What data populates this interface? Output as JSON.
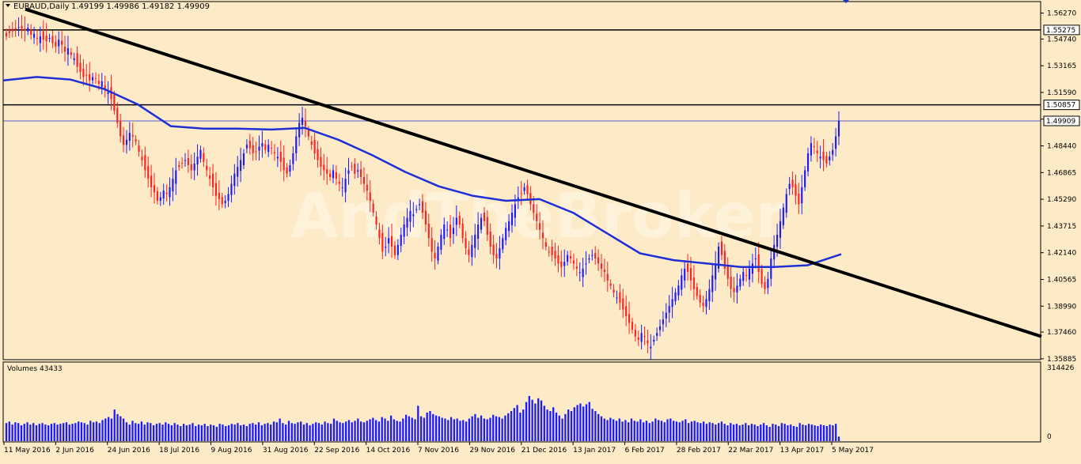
{
  "header": {
    "symbol_label": "EURAUD,Daily",
    "ohlc_text": "1.49199 1.49986 1.49182 1.49909"
  },
  "watermark": "AndTheBroker",
  "volume_panel": {
    "label": "Volumes 43433",
    "axis_labels": [
      "314426",
      "0"
    ]
  },
  "colors": {
    "background": "#fdebc8",
    "bull_candle": "#1a1aff",
    "bear_candle": "#ff2020",
    "moving_average": "#1f2fd6",
    "trendline": "#000000",
    "volume_bars": "#1a1aff",
    "axis_text": "#000000"
  },
  "chart_data": {
    "type": "candlestick",
    "symbol": "EURAUD",
    "timeframe": "Daily",
    "ylim": [
      1.3588,
      1.569
    ],
    "price_ticks": [
      "1.56270",
      "1.54740",
      "1.53165",
      "1.51590",
      "1.50015",
      "1.48440",
      "1.46865",
      "1.45290",
      "1.43715",
      "1.42140",
      "1.40565",
      "1.38990",
      "1.37460",
      "1.35885"
    ],
    "price_tick_values": [
      1.5627,
      1.5474,
      1.53165,
      1.5159,
      1.50015,
      1.4844,
      1.46865,
      1.4529,
      1.43715,
      1.4214,
      1.40565,
      1.3899,
      1.3746,
      1.35885
    ],
    "date_labels": [
      "11 May 2016",
      "2 Jun 2016",
      "24 Jun 2016",
      "18 Jul 2016",
      "9 Aug 2016",
      "31 Aug 2016",
      "22 Sep 2016",
      "14 Oct 2016",
      "7 Nov 2016",
      "29 Nov 2016",
      "21 Dec 2016",
      "13 Jan 2017",
      "6 Feb 2017",
      "28 Feb 2017",
      "22 Mar 2017",
      "13 Apr 2017",
      "5 May 2017"
    ],
    "horizontal_levels": [
      {
        "value": 1.55275,
        "label": "1.55275"
      },
      {
        "value": 1.50857,
        "label": "1.50857"
      }
    ],
    "current_price": {
      "value": 1.49909,
      "label": "1.49909"
    },
    "trendline": {
      "start_value": 1.565,
      "end_value": 1.372
    },
    "moving_average": [
      1.523,
      1.525,
      1.5235,
      1.518,
      1.509,
      1.496,
      1.4945,
      1.4945,
      1.494,
      1.495,
      1.488,
      1.479,
      1.469,
      1.4605,
      1.455,
      1.452,
      1.453,
      1.445,
      1.433,
      1.421,
      1.417,
      1.415,
      1.413,
      1.413,
      1.414,
      1.4205
    ],
    "candles": [
      1.549,
      1.551,
      1.552,
      1.553,
      1.5545,
      1.5535,
      1.5525,
      1.554,
      1.55,
      1.5505,
      1.548,
      1.549,
      1.547,
      1.546,
      1.548,
      1.545,
      1.543,
      1.547,
      1.544,
      1.54,
      1.542,
      1.538,
      1.536,
      1.531,
      1.528,
      1.525,
      1.526,
      1.523,
      1.525,
      1.524,
      1.521,
      1.5225,
      1.518,
      1.516,
      1.512,
      1.505,
      1.498,
      1.49,
      1.485,
      1.488,
      1.492,
      1.49,
      1.487,
      1.481,
      1.476,
      1.47,
      1.465,
      1.46,
      1.457,
      1.452,
      1.454,
      1.458,
      1.456,
      1.46,
      1.465,
      1.47,
      1.472,
      1.474,
      1.476,
      1.473,
      1.47,
      1.474,
      1.478,
      1.482,
      1.475,
      1.47,
      1.465,
      1.46,
      1.455,
      1.453,
      1.45,
      1.452,
      1.456,
      1.462,
      1.468,
      1.472,
      1.476,
      1.48,
      1.485,
      1.483,
      1.48,
      1.481,
      1.484,
      1.486,
      1.482,
      1.485,
      1.483,
      1.48,
      1.478,
      1.475,
      1.47,
      1.468,
      1.473,
      1.48,
      1.49,
      1.498,
      1.501,
      1.496,
      1.49,
      1.485,
      1.48,
      1.476,
      1.472,
      1.47,
      1.468,
      1.466,
      1.47,
      1.465,
      1.462,
      1.46,
      1.465,
      1.47,
      1.472,
      1.468,
      1.47,
      1.466,
      1.462,
      1.458,
      1.452,
      1.445,
      1.438,
      1.43,
      1.422,
      1.425,
      1.43,
      1.425,
      1.42,
      1.426,
      1.432,
      1.438,
      1.442,
      1.446,
      1.444,
      1.447,
      1.45,
      1.445,
      1.438,
      1.43,
      1.422,
      1.418,
      1.425,
      1.432,
      1.438,
      1.435,
      1.43,
      1.436,
      1.442,
      1.438,
      1.43,
      1.424,
      1.42,
      1.426,
      1.432,
      1.438,
      1.442,
      1.44,
      1.432,
      1.425,
      1.42,
      1.418,
      1.424,
      1.43,
      1.436,
      1.44,
      1.445,
      1.45,
      1.454,
      1.456,
      1.46,
      1.456,
      1.45,
      1.445,
      1.44,
      1.435,
      1.43,
      1.425,
      1.422,
      1.42,
      1.418,
      1.415,
      1.413,
      1.416,
      1.42,
      1.418,
      1.415,
      1.412,
      1.41,
      1.412,
      1.415,
      1.418,
      1.42,
      1.418,
      1.415,
      1.412,
      1.41,
      1.405,
      1.402,
      1.398,
      1.395,
      1.392,
      1.388,
      1.384,
      1.38,
      1.376,
      1.372,
      1.37,
      1.374,
      1.372,
      1.368,
      1.366,
      1.37,
      1.374,
      1.378,
      1.382,
      1.386,
      1.39,
      1.394,
      1.398,
      1.402,
      1.408,
      1.412,
      1.41,
      1.405,
      1.4,
      1.396,
      1.392,
      1.39,
      1.394,
      1.4,
      1.408,
      1.415,
      1.425,
      1.42,
      1.412,
      1.406,
      1.4,
      1.398,
      1.402,
      1.406,
      1.41,
      1.408,
      1.412,
      1.415,
      1.418,
      1.41,
      1.403,
      1.4,
      1.406,
      1.418,
      1.426,
      1.432,
      1.44,
      1.448,
      1.456,
      1.462,
      1.46,
      1.455,
      1.45,
      1.46,
      1.47,
      1.48,
      1.486,
      1.484,
      1.48,
      1.478,
      1.476,
      1.474,
      1.478,
      1.482,
      1.49,
      1.4991
    ],
    "volumes": [
      0.24,
      0.26,
      0.22,
      0.25,
      0.24,
      0.21,
      0.23,
      0.25,
      0.22,
      0.24,
      0.21,
      0.23,
      0.24,
      0.22,
      0.21,
      0.23,
      0.24,
      0.22,
      0.23,
      0.24,
      0.25,
      0.22,
      0.23,
      0.24,
      0.26,
      0.25,
      0.24,
      0.22,
      0.27,
      0.25,
      0.26,
      0.24,
      0.28,
      0.3,
      0.32,
      0.3,
      0.42,
      0.36,
      0.33,
      0.3,
      0.25,
      0.22,
      0.27,
      0.24,
      0.23,
      0.26,
      0.22,
      0.25,
      0.24,
      0.21,
      0.23,
      0.24,
      0.22,
      0.25,
      0.23,
      0.21,
      0.24,
      0.22,
      0.2,
      0.23,
      0.21,
      0.22,
      0.24,
      0.2,
      0.22,
      0.21,
      0.23,
      0.2,
      0.22,
      0.21,
      0.19,
      0.23,
      0.22,
      0.2,
      0.21,
      0.23,
      0.22,
      0.24,
      0.21,
      0.22,
      0.2,
      0.23,
      0.24,
      0.22,
      0.25,
      0.21,
      0.23,
      0.24,
      0.22,
      0.26,
      0.25,
      0.3,
      0.24,
      0.22,
      0.27,
      0.24,
      0.23,
      0.25,
      0.26,
      0.22,
      0.24,
      0.21,
      0.23,
      0.25,
      0.24,
      0.22,
      0.26,
      0.24,
      0.23,
      0.3,
      0.27,
      0.25,
      0.24,
      0.26,
      0.28,
      0.25,
      0.27,
      0.3,
      0.26,
      0.25,
      0.27,
      0.29,
      0.31,
      0.28,
      0.26,
      0.32,
      0.3,
      0.27,
      0.34,
      0.29,
      0.27,
      0.26,
      0.3,
      0.35,
      0.33,
      0.31,
      0.29,
      0.47,
      0.33,
      0.31,
      0.38,
      0.4,
      0.36,
      0.34,
      0.33,
      0.31,
      0.3,
      0.28,
      0.32,
      0.29,
      0.3,
      0.27,
      0.28,
      0.26,
      0.3,
      0.33,
      0.36,
      0.31,
      0.34,
      0.3,
      0.29,
      0.31,
      0.35,
      0.33,
      0.32,
      0.3,
      0.34,
      0.37,
      0.4,
      0.44,
      0.48,
      0.38,
      0.42,
      0.52,
      0.6,
      0.55,
      0.5,
      0.57,
      0.54,
      0.47,
      0.42,
      0.4,
      0.45,
      0.38,
      0.34,
      0.3,
      0.36,
      0.42,
      0.4,
      0.45,
      0.48,
      0.5,
      0.46,
      0.49,
      0.52,
      0.43,
      0.4,
      0.36,
      0.33,
      0.3,
      0.28,
      0.31,
      0.29,
      0.27,
      0.3,
      0.26,
      0.28,
      0.25,
      0.3,
      0.27,
      0.26,
      0.29,
      0.25,
      0.27,
      0.24,
      0.26,
      0.3,
      0.28,
      0.27,
      0.25,
      0.29,
      0.3,
      0.27,
      0.26,
      0.25,
      0.27,
      0.29,
      0.24,
      0.26,
      0.27,
      0.25,
      0.24,
      0.26,
      0.23,
      0.25,
      0.24,
      0.22,
      0.24,
      0.26,
      0.23,
      0.21,
      0.24,
      0.22,
      0.23,
      0.21,
      0.22,
      0.24,
      0.21,
      0.23,
      0.22,
      0.2,
      0.22,
      0.24,
      0.21,
      0.19,
      0.23,
      0.22,
      0.2,
      0.24,
      0.23,
      0.21,
      0.22,
      0.2,
      0.19,
      0.24,
      0.22,
      0.21,
      0.23,
      0.22,
      0.21,
      0.2,
      0.22,
      0.21,
      0.2,
      0.22,
      0.21,
      0.23,
      0.06
    ]
  }
}
